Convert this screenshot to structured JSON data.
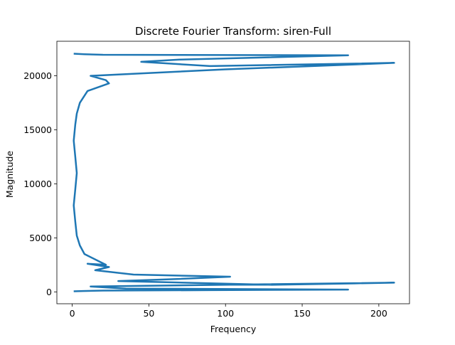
{
  "chart_data": {
    "type": "line",
    "title": "Discrete Fourier Transform: siren-Full",
    "xlabel": "Frequency",
    "ylabel": "Magnitude",
    "xlim": [
      -10,
      220
    ],
    "ylim": [
      -1100,
      23200
    ],
    "xticks": [
      0,
      50,
      100,
      150,
      200
    ],
    "yticks": [
      0,
      5000,
      10000,
      15000,
      20000
    ],
    "grid": false,
    "legend": "none",
    "series_color": "#1f77b4",
    "series": [
      {
        "x": [
          1,
          7,
          20,
          90,
          180,
          35,
          12,
          210,
          130,
          30,
          70,
          103,
          40,
          15,
          24,
          10,
          22,
          8,
          5,
          3,
          2,
          1,
          2,
          3,
          2,
          1,
          2,
          3,
          5,
          10,
          24,
          22,
          12,
          100,
          175,
          210,
          90,
          45,
          70,
          180,
          20,
          8,
          1
        ],
        "y": [
          50,
          80,
          120,
          160,
          210,
          300,
          500,
          850,
          650,
          1000,
          1200,
          1400,
          1600,
          2000,
          2300,
          2600,
          2500,
          3500,
          4300,
          5200,
          6500,
          8000,
          9500,
          11000,
          12500,
          14000,
          15500,
          16500,
          17500,
          18600,
          19300,
          19600,
          20000,
          20600,
          21000,
          21200,
          20900,
          21300,
          21500,
          21900,
          21950,
          22000,
          22050
        ]
      }
    ]
  }
}
